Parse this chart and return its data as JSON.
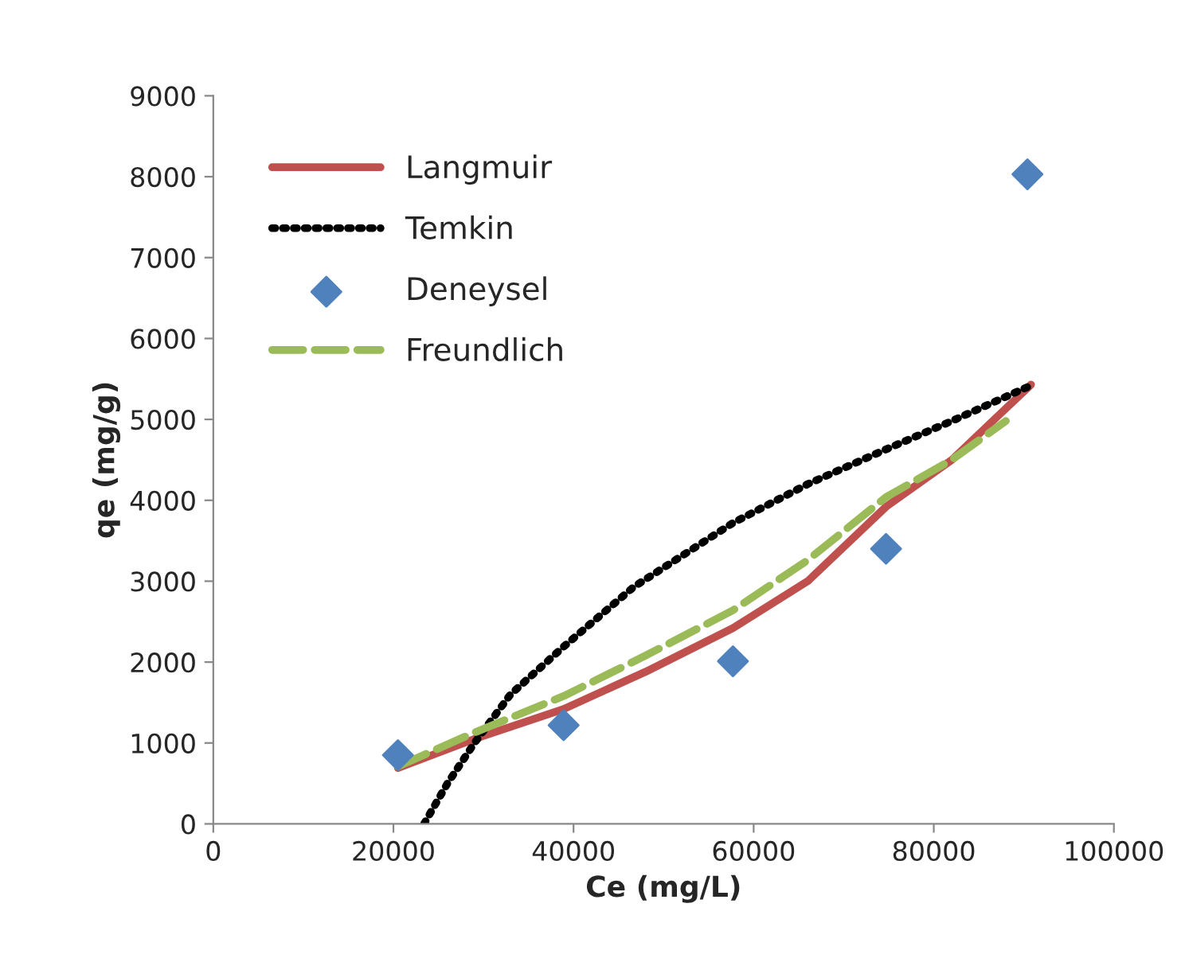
{
  "chart_data": {
    "type": "line",
    "xlabel": "Ce (mg/L)",
    "ylabel": "qe (mg/g)",
    "xlim": [
      0,
      100000
    ],
    "xticks": [
      0,
      20000,
      40000,
      60000,
      80000,
      100000
    ],
    "ylim": [
      0,
      9000
    ],
    "yticks": [
      0,
      1000,
      2000,
      3000,
      4000,
      5000,
      6000,
      7000,
      8000,
      9000
    ],
    "grid": false,
    "legend": "top left",
    "series": [
      {
        "name": "Langmuir",
        "line_style": "solid",
        "color": "#c0504d",
        "x": [
          20500,
          29000,
          38900,
          48000,
          57700,
          66000,
          74700,
          82000,
          90800
        ],
        "values": [
          690,
          1050,
          1420,
          1880,
          2420,
          3000,
          3920,
          4500,
          5430
        ]
      },
      {
        "name": "Temkin",
        "line_style": "dotted",
        "color": "#000000",
        "x": [
          23400,
          26000,
          29000,
          33000,
          38900,
          46700,
          57700,
          66000,
          74700,
          82000,
          90800
        ],
        "values": [
          0,
          500,
          1000,
          1600,
          2190,
          2930,
          3720,
          4200,
          4630,
          4980,
          5420
        ]
      },
      {
        "name": "Deneysel",
        "type": "scatter",
        "marker": "diamond",
        "color": "#4f81bd",
        "x": [
          20500,
          38900,
          57700,
          74700,
          90400
        ],
        "values": [
          850,
          1220,
          2010,
          3400,
          8030
        ]
      },
      {
        "name": "Freundlich",
        "line_style": "dashed",
        "color": "#9bbb59",
        "x": [
          20500,
          29000,
          38900,
          48000,
          57700,
          66000,
          74700,
          82000,
          88000
        ],
        "values": [
          710,
          1130,
          1580,
          2080,
          2640,
          3260,
          4040,
          4500,
          4980
        ]
      }
    ]
  }
}
